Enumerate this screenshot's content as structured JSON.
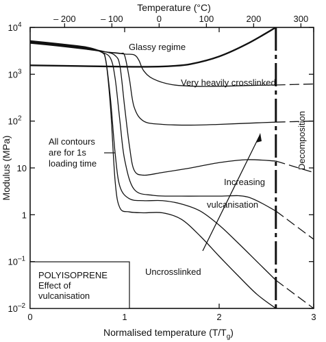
{
  "chart_data": {
    "type": "line",
    "title": "",
    "x_top_label": "Temperature (°C)",
    "x_top_ticks": [
      "– 200",
      "– 100",
      "0",
      "100",
      "200",
      "300"
    ],
    "xlabel": "Normalised temperature (T/T",
    "xlabel_sub": "g",
    "xlabel_tail": ")",
    "ylabel": "Modulus (MPa)",
    "x_ticks": [
      "0",
      "1",
      "2",
      "3"
    ],
    "y_ticks": [
      {
        "base": "10",
        "exp": "–2"
      },
      {
        "base": "10",
        "exp": "–1"
      },
      {
        "base": "1",
        "exp": ""
      },
      {
        "base": "10",
        "exp": ""
      },
      {
        "base": "10",
        "exp": "2"
      },
      {
        "base": "10",
        "exp": "3"
      },
      {
        "base": "10",
        "exp": "4"
      }
    ],
    "xlim": [
      0,
      3
    ],
    "ylim_log10": [
      -2,
      4
    ],
    "y_scale": "log",
    "grid": false,
    "decomposition_x": 2.6,
    "series": [
      {
        "x": [
          0,
          0.3,
          0.6,
          0.75,
          0.8,
          0.85,
          0.9,
          0.95,
          1.05,
          1.2,
          1.4,
          1.6,
          1.8,
          2.0,
          2.2,
          2.4,
          2.6,
          3.0
        ],
        "y": [
          5200,
          4500,
          3800,
          3000,
          2000,
          200,
          5,
          1.4,
          1.15,
          1.1,
          1.1,
          0.8,
          0.35,
          0.13,
          0.05,
          0.02,
          0.01,
          0.003
        ]
      },
      {
        "x": [
          0,
          0.3,
          0.6,
          0.75,
          0.8,
          0.85,
          0.9,
          0.95,
          1.05,
          1.2,
          1.4,
          1.6,
          1.8,
          2.0,
          2.2,
          2.4,
          2.6,
          3.0
        ],
        "y": [
          5000,
          4400,
          3700,
          3000,
          2000,
          300,
          20,
          4,
          2.2,
          2.0,
          2.0,
          1.7,
          1.2,
          0.6,
          0.25,
          0.1,
          0.04,
          0.01
        ]
      },
      {
        "x": [
          0,
          0.3,
          0.6,
          0.75,
          0.85,
          0.9,
          0.95,
          1.0,
          1.1,
          1.3,
          1.6,
          2.0,
          2.3,
          2.6,
          3.0
        ],
        "y": [
          4900,
          4300,
          3600,
          3000,
          2200,
          800,
          100,
          15,
          3.5,
          2.6,
          2.5,
          2.5,
          2.4,
          1.2,
          0.3
        ]
      },
      {
        "x": [
          0,
          0.3,
          0.6,
          0.8,
          0.9,
          0.95,
          1.0,
          1.05,
          1.1,
          1.2,
          1.4,
          1.7,
          2.0,
          2.3,
          2.6,
          3.0
        ],
        "y": [
          4800,
          4200,
          3600,
          3000,
          2500,
          1500,
          200,
          30,
          9,
          7,
          8,
          10,
          13,
          15,
          14,
          8
        ]
      },
      {
        "x": [
          0,
          0.3,
          0.6,
          0.8,
          0.95,
          1.0,
          1.05,
          1.1,
          1.2,
          1.4,
          1.7,
          2.0,
          2.3,
          2.6,
          3.0
        ],
        "y": [
          4700,
          4100,
          3500,
          3000,
          2800,
          2500,
          800,
          200,
          100,
          85,
          82,
          85,
          90,
          95,
          100
        ]
      },
      {
        "x": [
          0,
          0.3,
          0.6,
          0.8,
          1.0,
          1.1,
          1.15,
          1.2,
          1.3,
          1.5,
          1.8,
          2.1,
          2.4,
          2.6,
          3.0
        ],
        "y": [
          4600,
          4000,
          3400,
          3000,
          2700,
          2600,
          2000,
          1200,
          800,
          600,
          550,
          560,
          580,
          590,
          620
        ]
      },
      {
        "x": [
          0,
          0.5,
          1.0,
          1.3,
          1.5,
          1.7,
          2.0,
          2.3,
          2.6
        ],
        "y": [
          1550,
          1500,
          1450,
          1450,
          1500,
          1650,
          2400,
          4500,
          10000
        ]
      }
    ]
  },
  "annotations": {
    "glassy": "Glassy regime",
    "very_heavy": "Very heavily crosslinked",
    "decomposition": "Decomposition",
    "contours": [
      "All contours",
      "are for 1s",
      "loading time"
    ],
    "increasing": "Increasing",
    "vulcanisation": "vulcanisation",
    "uncrosslinked": "Uncrosslinked",
    "box": [
      "POLYISOPRENE",
      "Effect of",
      "vulcanisation"
    ]
  }
}
